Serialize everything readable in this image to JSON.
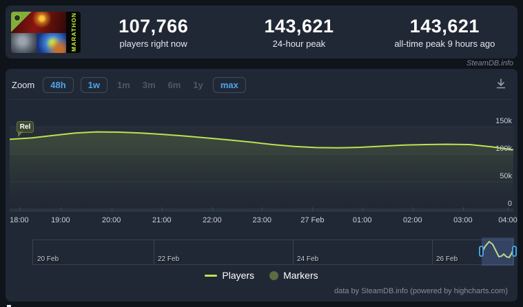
{
  "header": {
    "game_title": "MARATHON",
    "stats": [
      {
        "value": "107,766",
        "label": "players right now"
      },
      {
        "value": "143,621",
        "label": "24-hour peak"
      },
      {
        "value": "143,621",
        "label": "all-time peak 9 hours ago"
      }
    ],
    "watermark": "SteamDB.info"
  },
  "toolbar": {
    "zoom_label": "Zoom",
    "buttons": [
      {
        "label": "48h",
        "enabled": true
      },
      {
        "label": "1w",
        "enabled": true
      },
      {
        "label": "1m",
        "enabled": false
      },
      {
        "label": "3m",
        "enabled": false
      },
      {
        "label": "6m",
        "enabled": false
      },
      {
        "label": "1y",
        "enabled": false
      },
      {
        "label": "max",
        "enabled": true
      }
    ],
    "icons": {
      "download": "download-icon"
    }
  },
  "chart_data": {
    "type": "line",
    "title": "",
    "xlabel": "",
    "ylabel": "Players",
    "x_start": "17:45",
    "x_end": "04:15",
    "xticks": [
      "18:00",
      "19:00",
      "20:00",
      "21:00",
      "22:00",
      "23:00",
      "27 Feb",
      "01:00",
      "02:00",
      "03:00",
      "04:00"
    ],
    "yticks": [
      "150k",
      "100k",
      "50k",
      "0"
    ],
    "ytick_values": [
      150000,
      100000,
      50000,
      0
    ],
    "ylim": [
      0,
      187500
    ],
    "grid": true,
    "legend_position": "bottom",
    "series": [
      {
        "name": "Players",
        "color": "#bce34f",
        "values": [
          127000,
          129500,
          134000,
          138500,
          140500,
          140000,
          138500,
          136000,
          133000,
          129500,
          126000,
          122000,
          117500,
          114000,
          112000,
          111500,
          112500,
          114500,
          116500,
          117500,
          118000,
          117500,
          113500,
          108000
        ]
      }
    ],
    "flags": [
      {
        "label": "Rel",
        "meaning": "release",
        "x": "17:45"
      }
    ]
  },
  "navigator": {
    "labels": [
      "20 Feb",
      "22 Feb",
      "24 Feb",
      "26 Feb"
    ],
    "sparkline_color": "#b9d98b",
    "sparkline": [
      [
        0,
        23
      ],
      [
        5,
        13
      ],
      [
        11,
        6
      ],
      [
        16,
        10
      ],
      [
        21,
        20
      ],
      [
        25,
        28
      ],
      [
        29,
        27
      ],
      [
        32,
        24
      ],
      [
        36,
        28
      ],
      [
        40,
        29
      ],
      [
        44,
        22
      ],
      [
        47,
        13
      ]
    ]
  },
  "legend": [
    {
      "name": "Players",
      "swatch": "line",
      "color": "#bce34f"
    },
    {
      "name": "Markers",
      "swatch": "circle",
      "color": "#5c6b42"
    }
  ],
  "footer": {
    "credit": "data by SteamDB.info (powered by highcharts.com)"
  },
  "colors": {
    "accent_blue": "#4ba6e8",
    "line_green": "#bce34f",
    "panel": "#212835",
    "background": "#0f141b"
  }
}
